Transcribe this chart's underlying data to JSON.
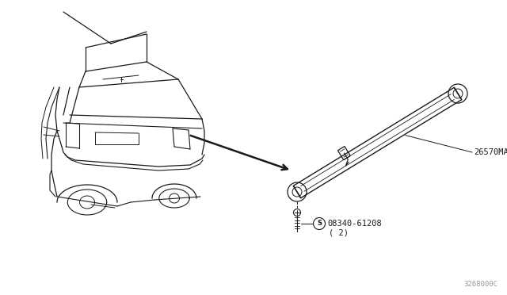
{
  "bg_color": "#ffffff",
  "line_color": "#1a1a1a",
  "part_label_1": "26570MA",
  "part_label_2": "08340-61208",
  "part_label_2b": "( 2)",
  "diagram_id": "3268000C",
  "fig_width": 6.4,
  "fig_height": 3.72,
  "dpi": 100
}
